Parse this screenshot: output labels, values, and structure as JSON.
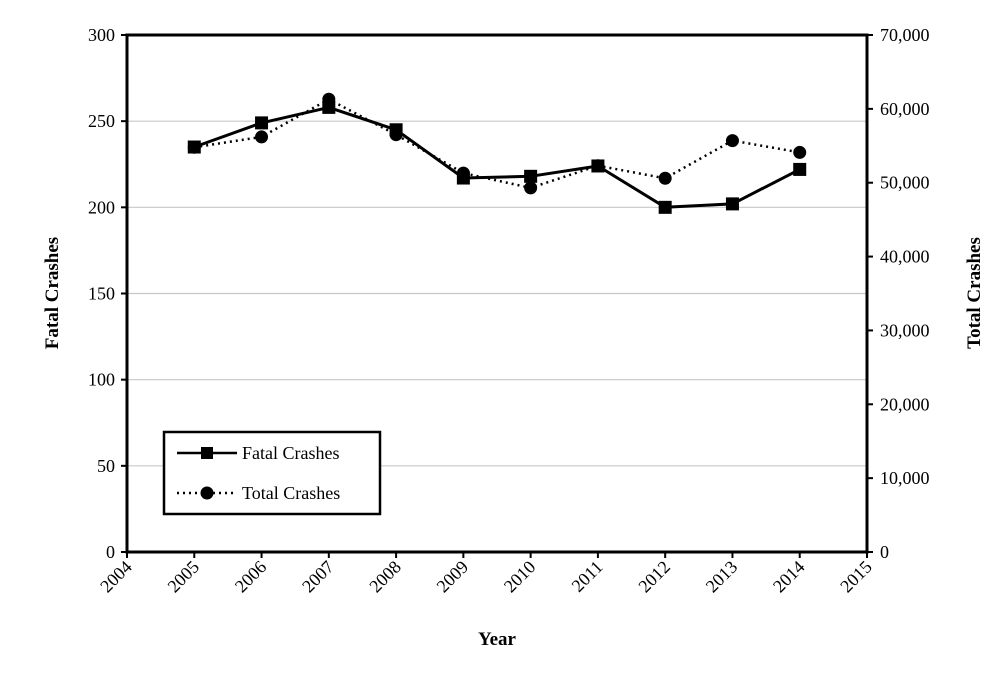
{
  "chart_data": {
    "type": "line",
    "xlabel": "Year",
    "ylabel": "Fatal Crashes",
    "y2label": "Total Crashes",
    "xlim": [
      2004,
      2015
    ],
    "ylim": [
      0,
      300
    ],
    "y2lim": [
      0,
      70000
    ],
    "x_ticks": [
      "2004",
      "2005",
      "2006",
      "2007",
      "2008",
      "2009",
      "2010",
      "2011",
      "2012",
      "2013",
      "2014",
      "2015"
    ],
    "y_ticks": [
      "0",
      "50",
      "100",
      "150",
      "200",
      "250",
      "300"
    ],
    "y2_ticks": [
      "0",
      "10,000",
      "20,000",
      "30,000",
      "40,000",
      "50,000",
      "60,000",
      "70,000"
    ],
    "grid": "horizontal",
    "legend_position": "bottom-left",
    "x": [
      2005,
      2006,
      2007,
      2008,
      2009,
      2010,
      2011,
      2012,
      2013,
      2014
    ],
    "series": [
      {
        "name": "Fatal Crashes",
        "axis": "left",
        "marker": "square",
        "line_style": "solid",
        "values": [
          235,
          249,
          258,
          245,
          217,
          218,
          224,
          200,
          202,
          222
        ]
      },
      {
        "name": "Total Crashes",
        "axis": "right",
        "marker": "circle",
        "line_style": "dotted",
        "values": [
          54800,
          56200,
          61300,
          56500,
          51300,
          49300,
          52300,
          50600,
          55700,
          54100
        ]
      }
    ]
  }
}
